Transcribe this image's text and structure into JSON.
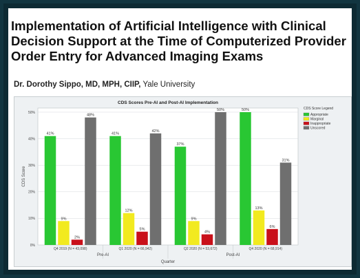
{
  "slide": {
    "title": "Implementation of Artificial Intelligence with Clinical Decision Support at the Time of Computerized Provider Order Entry for Advanced Imaging Exams",
    "author_name": "Dr. Dorothy Sippo, MD, MPH, CIIP,",
    "author_affiliation": " Yale University"
  },
  "colors": {
    "Appropriate": "#29c733",
    "Marginal": "#f2ea1f",
    "Inappropriate": "#c9101a",
    "Unscored": "#6f6f6f"
  },
  "chart_data": {
    "type": "bar",
    "title": "CDS Scores Pre-AI and Post-AI Implementation",
    "xlabel": "Quarter",
    "ylabel": "CDS Score",
    "ylim": [
      0,
      50
    ],
    "yticks": [
      "0%",
      "10%",
      "20%",
      "30%",
      "40%",
      "50%"
    ],
    "grid": true,
    "legend_title": "CDS Score Legend",
    "legend_position": "right",
    "categories": [
      "Q4 2019 (N = 43,098)",
      "Q1 2020 (N = 66,942)",
      "Q2 2020 (N = 53,672)",
      "Q4 2020 (N = 68,914)"
    ],
    "groups": [
      {
        "label": "Pre-AI",
        "categories": [
          0,
          1
        ]
      },
      {
        "label": "Post-AI",
        "categories": [
          2,
          3
        ]
      }
    ],
    "series": [
      {
        "name": "Appropriate",
        "values": [
          41,
          41,
          37,
          50
        ],
        "labels": [
          "41%",
          "41%",
          "37%",
          "50%"
        ]
      },
      {
        "name": "Marginal",
        "values": [
          9,
          12,
          9,
          13
        ],
        "labels": [
          "9%",
          "12%",
          "9%",
          "13%"
        ]
      },
      {
        "name": "Inappropriate",
        "values": [
          2,
          5,
          4,
          6
        ],
        "labels": [
          "2%",
          "5%",
          "4%",
          "6%"
        ]
      },
      {
        "name": "Unscored",
        "values": [
          48,
          42,
          50,
          31
        ],
        "labels": [
          "48%",
          "42%",
          "50%",
          "31%"
        ]
      }
    ]
  }
}
